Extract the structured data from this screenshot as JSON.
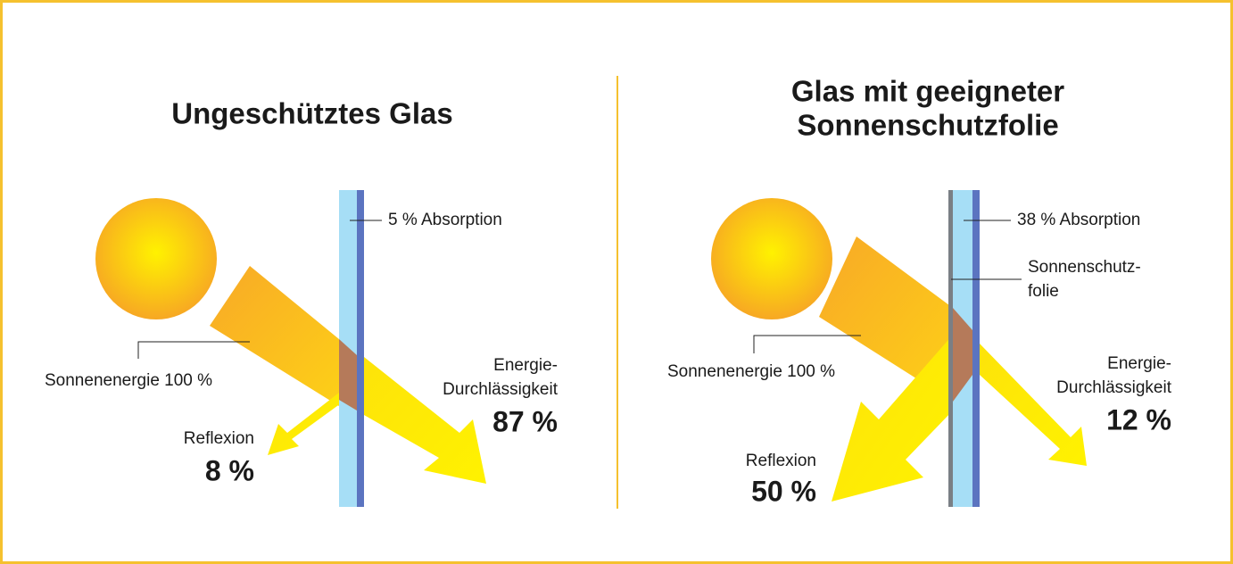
{
  "panels": [
    {
      "title": [
        "Ungeschütztes Glas"
      ],
      "absorption": "5 % Absorption",
      "source": "Sonnenenergie 100 %",
      "reflexion_label": "Reflexion",
      "reflexion_value": "8 %",
      "transmission_label": [
        "Energie-",
        "Durchlässigkeit"
      ],
      "transmission_value": "87 %"
    },
    {
      "title": [
        "Glas mit geeigneter",
        "Sonnenschutzfolie"
      ],
      "absorption": "38 % Absorption",
      "film": [
        "Sonnenschutz-",
        "folie"
      ],
      "source": "Sonnenenergie 100 %",
      "reflexion_label": "Reflexion",
      "reflexion_value": "50 %",
      "transmission_label": [
        "Energie-",
        "Durchlässigkeit"
      ],
      "transmission_value": "12 %"
    }
  ]
}
